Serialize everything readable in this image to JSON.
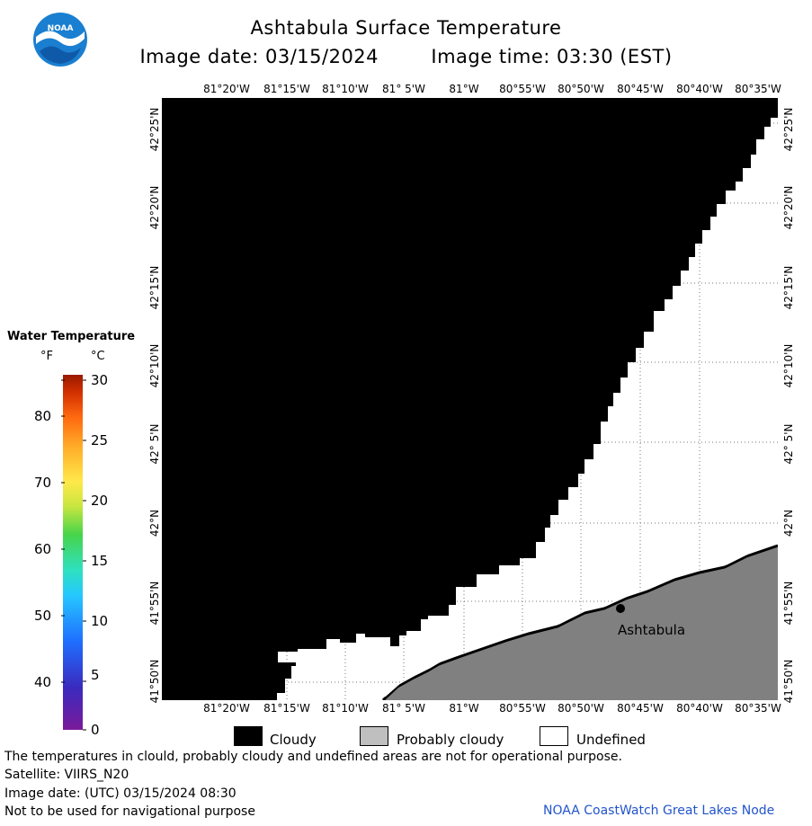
{
  "logo": {
    "text": "NOAA"
  },
  "title": "Ashtabula Surface Temperature",
  "image_date_label": "Image date: 03/15/2024",
  "image_time_label": "Image time: 03:30 (EST)",
  "lon_labels": [
    "81°20'W",
    "81°15'W",
    "81°10'W",
    "81° 5'W",
    "81°W",
    "80°55'W",
    "80°50'W",
    "80°45'W",
    "80°40'W",
    "80°35'W"
  ],
  "lat_labels": [
    "42°25'N",
    "42°20'N",
    "42°15'N",
    "42°10'N",
    "42° 5'N",
    "42°N",
    "41°55'N",
    "41°50'N"
  ],
  "place_label": "Ashtabula",
  "legend": {
    "title": "Water Temperature",
    "unit_f": "°F",
    "unit_c": "°C",
    "f_ticks": [
      "80",
      "70",
      "60",
      "50",
      "40"
    ],
    "c_ticks": [
      "30",
      "25",
      "20",
      "15",
      "10",
      "5",
      "0"
    ]
  },
  "key": {
    "cloudy": "Cloudy",
    "probably_cloudy": "Probably cloudy",
    "undefined": "Undefined"
  },
  "colors": {
    "cloudy": "#000000",
    "probably_cloudy": "#bfbfbf",
    "land": "#808080",
    "undefined": "#ffffff",
    "credit": "#2255cc"
  },
  "footer": {
    "note": "The temperatures in clould, probably cloudy and undefined areas are not for operational purpose.",
    "satellite": "Satellite: VIIRS_N20",
    "utc_date": "Image date: (UTC) 03/15/2024  08:30",
    "warning": "Not to be used for navigational purpose",
    "credit": "NOAA CoastWatch Great Lakes Node"
  }
}
